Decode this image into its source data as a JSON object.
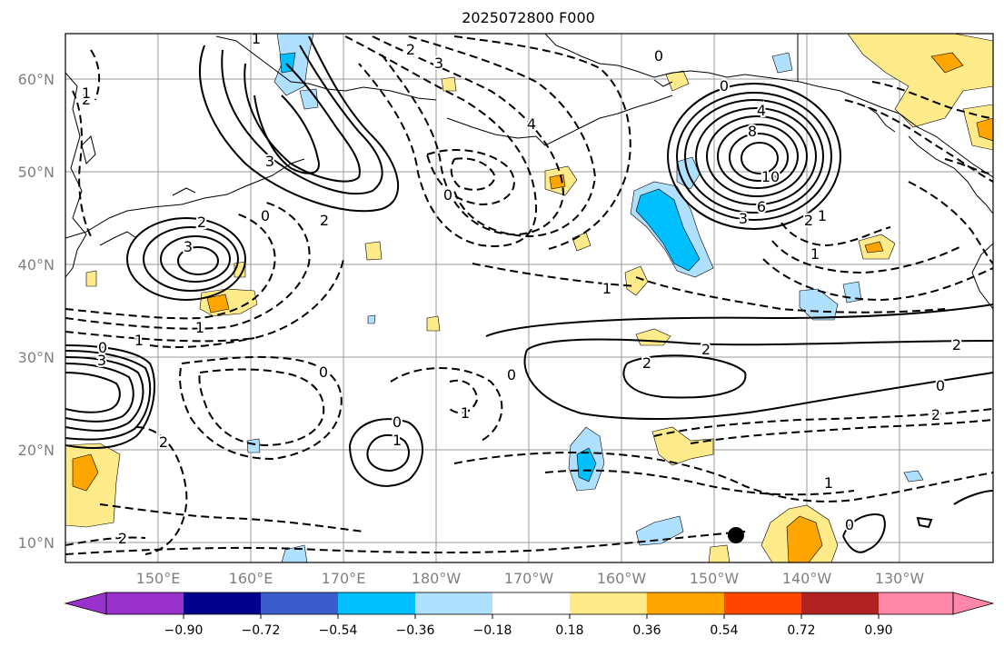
{
  "title": "2025072800 F000",
  "lat_labels": [
    "60°N",
    "50°N",
    "40°N",
    "30°N",
    "20°N",
    "10°N"
  ],
  "lon_labels": [
    "150°E",
    "160°E",
    "170°E",
    "180°W",
    "170°W",
    "160°W",
    "150°W",
    "140°W",
    "130°W"
  ],
  "colorbar": {
    "levels": [
      "−0.90",
      "−0.72",
      "−0.54",
      "−0.36",
      "−0.18",
      "0.18",
      "0.36",
      "0.54",
      "0.72",
      "0.90"
    ],
    "colors": [
      "#9932cc",
      "#00008b",
      "#3a5ccc",
      "#00bfff",
      "#b0e0ff",
      "#ffffff",
      "#ffeb8a",
      "#ffa500",
      "#ff4500",
      "#b22222",
      "#ff88aa"
    ]
  },
  "contour_labels": [
    "1",
    "2",
    "3",
    "2",
    "0",
    "2",
    "3",
    "1",
    "1",
    "0",
    "2",
    "1",
    "0",
    "3",
    "4",
    "2",
    "4",
    "0",
    "0",
    "8",
    "10",
    "6",
    "3",
    "2",
    "1",
    "1",
    "1",
    "2",
    "0",
    "1",
    "2",
    "0",
    "2",
    "1",
    "0",
    "3",
    "0",
    "1",
    "2",
    "0",
    "2"
  ],
  "marker": "storm-center"
}
